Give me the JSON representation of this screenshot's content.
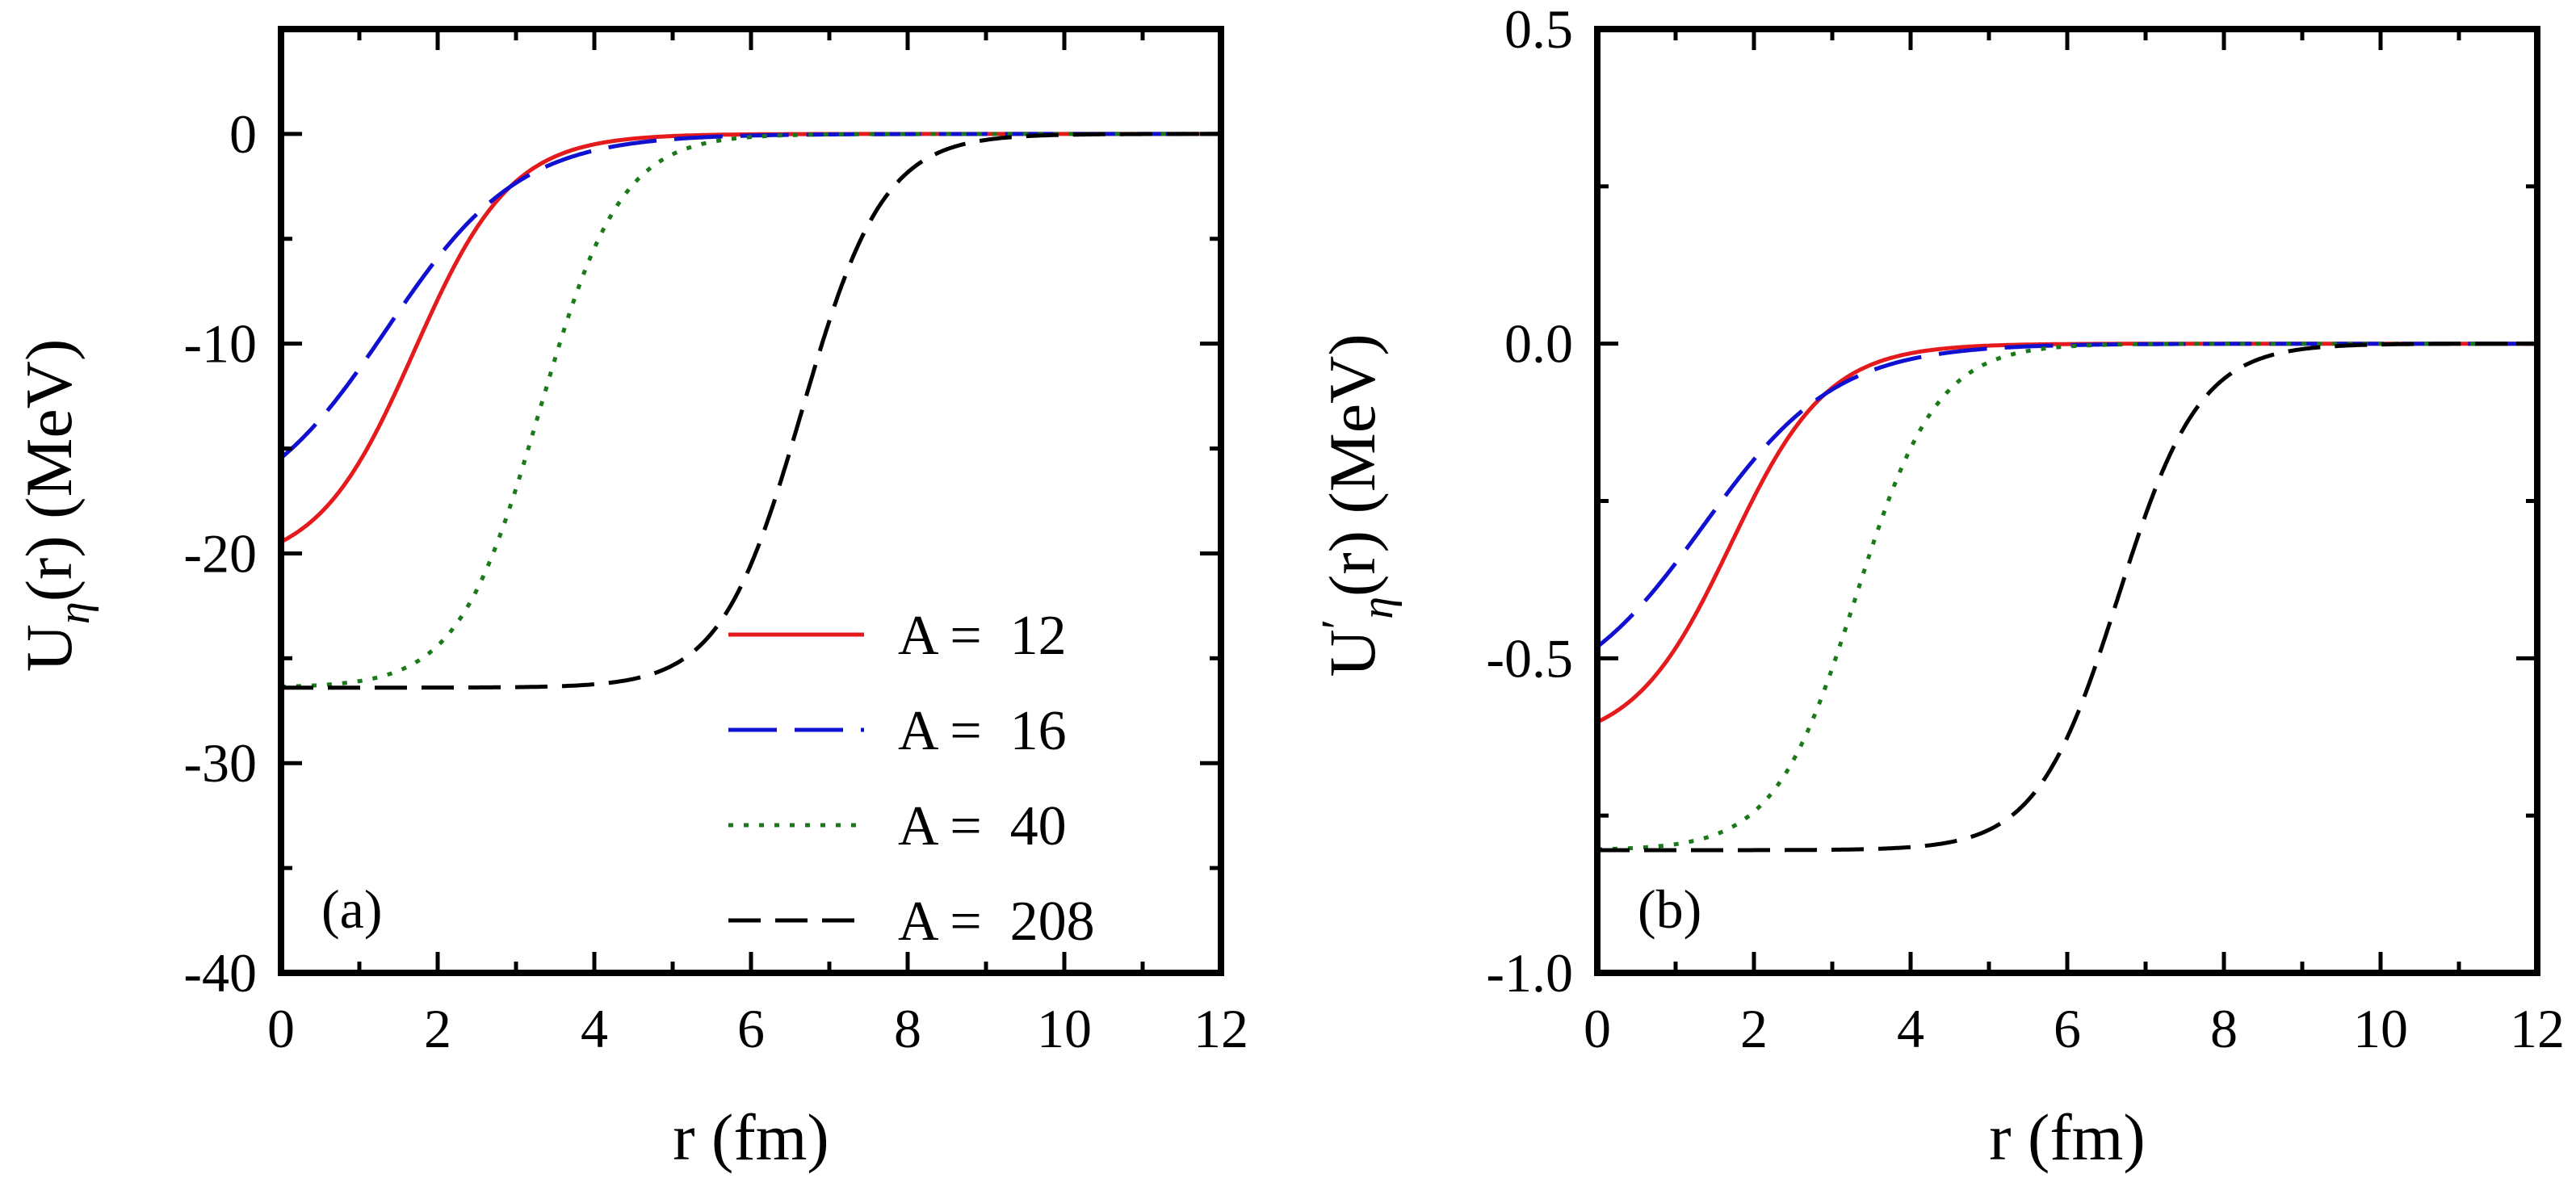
{
  "chart_data": [
    {
      "type": "line",
      "panel_label": "(a)",
      "xlabel": "r (fm)",
      "ylabel": "U_η(r) (MeV)",
      "xlim": [
        0,
        12
      ],
      "ylim": [
        -40,
        5
      ],
      "xticks": [
        0,
        2,
        4,
        6,
        8,
        10,
        12
      ],
      "xtick_labels": [
        "0",
        "2",
        "4",
        "6",
        "8",
        "10",
        "12"
      ],
      "yticks": [
        -40,
        -30,
        -20,
        -10,
        0
      ],
      "ytick_labels": [
        "-40",
        "-30",
        "-20",
        "-10",
        "0"
      ],
      "legend_position": "bottom-right",
      "series": [
        {
          "name": "A =  12",
          "color": "#e41a1c",
          "dash": "solid",
          "depth": -20.7,
          "radius": 1.7,
          "diffuseness": 0.62
        },
        {
          "name": "A =  16",
          "color": "#1010d0",
          "dash": "long-dash",
          "depth": -18.6,
          "radius": 1.35,
          "diffuseness": 0.85
        },
        {
          "name": "A =  40",
          "color": "#1a7a1a",
          "dash": "dotted",
          "depth": -26.4,
          "radius": 3.3,
          "diffuseness": 0.52
        },
        {
          "name": "A =  208",
          "color": "#000000",
          "dash": "dashed",
          "depth": -26.4,
          "radius": 6.65,
          "diffuseness": 0.52
        }
      ]
    },
    {
      "type": "line",
      "panel_label": "(b)",
      "xlabel": "r (fm)",
      "ylabel": "U′_η(r) (MeV)",
      "xlim": [
        0,
        12
      ],
      "ylim": [
        -1.0,
        0.5
      ],
      "xticks": [
        0,
        2,
        4,
        6,
        8,
        10,
        12
      ],
      "xtick_labels": [
        "0",
        "2",
        "4",
        "6",
        "8",
        "10",
        "12"
      ],
      "yticks": [
        -1.0,
        -0.5,
        0.0,
        0.5
      ],
      "ytick_labels": [
        "-1.0",
        "-0.5",
        "0.0",
        "0.5"
      ],
      "series": [
        {
          "color": "#e41a1c",
          "dash": "solid",
          "depth": -0.64,
          "radius": 1.7,
          "diffuseness": 0.62
        },
        {
          "color": "#1010d0",
          "dash": "long-dash",
          "depth": -0.58,
          "radius": 1.35,
          "diffuseness": 0.85
        },
        {
          "color": "#1a7a1a",
          "dash": "dotted",
          "depth": -0.805,
          "radius": 3.3,
          "diffuseness": 0.52
        },
        {
          "color": "#000000",
          "dash": "dashed",
          "depth": -0.805,
          "radius": 6.65,
          "diffuseness": 0.52
        }
      ]
    }
  ]
}
